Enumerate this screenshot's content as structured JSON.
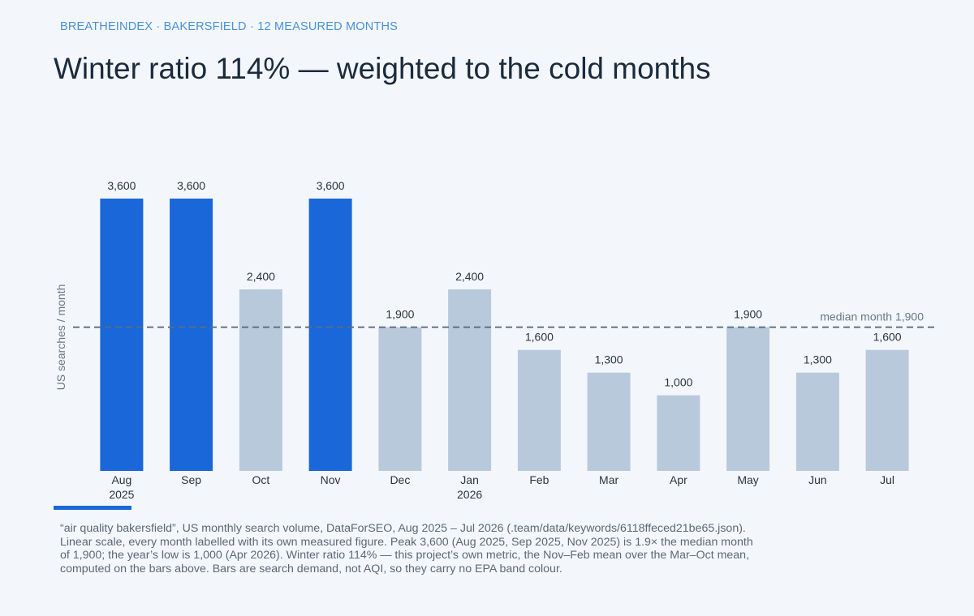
{
  "header": {
    "eyebrow": "BREATHEINDEX · BAKERSFIELD · 12 MEASURED MONTHS",
    "headline": "Winter ratio 114% — weighted to the cold months"
  },
  "chart_data": {
    "type": "bar",
    "categories": [
      "Aug",
      "Sep",
      "Oct",
      "Nov",
      "Dec",
      "Jan",
      "Feb",
      "Mar",
      "Apr",
      "May",
      "Jun",
      "Jul"
    ],
    "year_labels": [
      "2025",
      "",
      "",
      "",
      "",
      "2026",
      "",
      "",
      "",
      "",
      "",
      ""
    ],
    "values": [
      3600,
      3600,
      2400,
      3600,
      1900,
      2400,
      1600,
      1300,
      1000,
      1900,
      1300,
      1600
    ],
    "value_labels": [
      "3,600",
      "3,600",
      "2,400",
      "3,600",
      "1,900",
      "2,400",
      "1,600",
      "1,300",
      "1,000",
      "1,900",
      "1,300",
      "1,600"
    ],
    "highlighted": [
      true,
      true,
      false,
      true,
      false,
      false,
      false,
      false,
      false,
      false,
      false,
      false
    ],
    "ylabel": "US searches / month",
    "ylim": [
      0,
      3600
    ],
    "reference_line": {
      "value": 1900,
      "label": "median month",
      "value_label": "1,900"
    },
    "grid": false,
    "colors": {
      "peak": "#1967d9",
      "other": "#b9c9dc",
      "median_line": "#5d6b7b"
    }
  },
  "footnote": {
    "text": "“air quality bakersfield”, US monthly search volume, DataForSEO, Aug 2025 – Jul 2026 (.team/data/keywords/6118ffeced21be65.json). Linear scale, every month labelled with its own measured figure. Peak 3,600 (Aug 2025, Sep 2025, Nov 2025) is 1.9× the median month of 1,900; the year’s low is 1,000 (Apr 2026). Winter ratio 114% — this project’s own metric, the Nov–Feb mean over the Mar–Oct mean, computed on the bars above. Bars are search demand, not AQI, so they carry no EPA band colour."
  }
}
